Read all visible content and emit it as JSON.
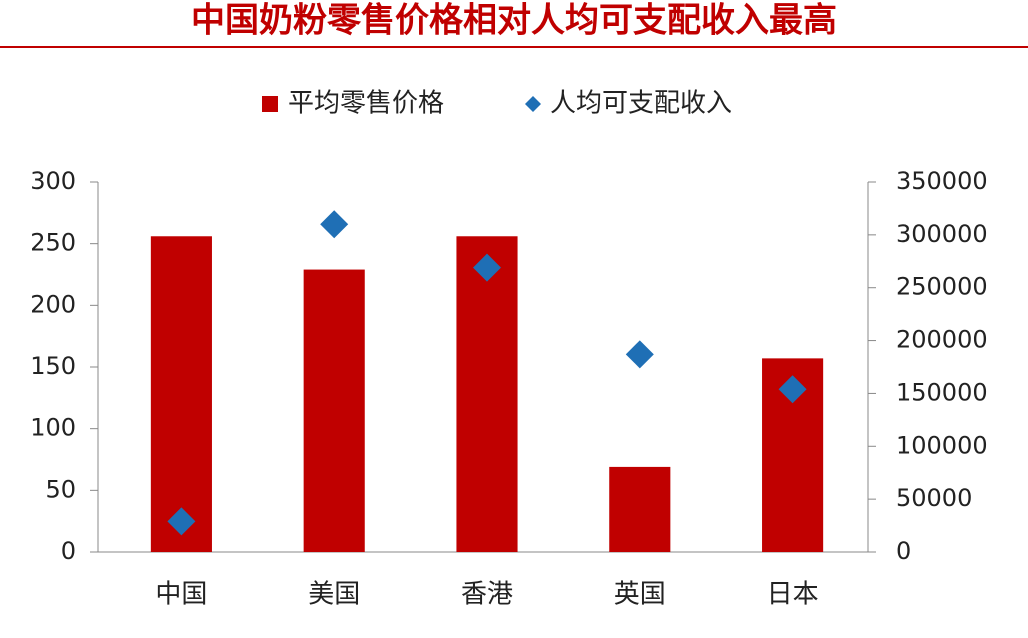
{
  "chart_data": {
    "type": "bar",
    "title": "中国奶粉零售价格相对人均可支配收入最高",
    "categories": [
      "中国",
      "美国",
      "香港",
      "英国",
      "日本"
    ],
    "series": [
      {
        "name": "平均零售价格",
        "color": "#c00000",
        "values": [
          256,
          229,
          256,
          69,
          157
        ]
      },
      {
        "name": "人均可支配收入",
        "color": "#1f6fb5",
        "type": "scatter",
        "axis": "y2",
        "values": [
          29000,
          310000,
          269000,
          187000,
          154000
        ]
      }
    ],
    "ylim": [
      0,
      300
    ],
    "yticks": [
      0,
      50,
      100,
      150,
      200,
      250,
      300
    ],
    "y2lim": [
      0,
      350000
    ],
    "y2ticks": [
      0,
      50000,
      100000,
      150000,
      200000,
      250000,
      300000,
      350000
    ]
  }
}
